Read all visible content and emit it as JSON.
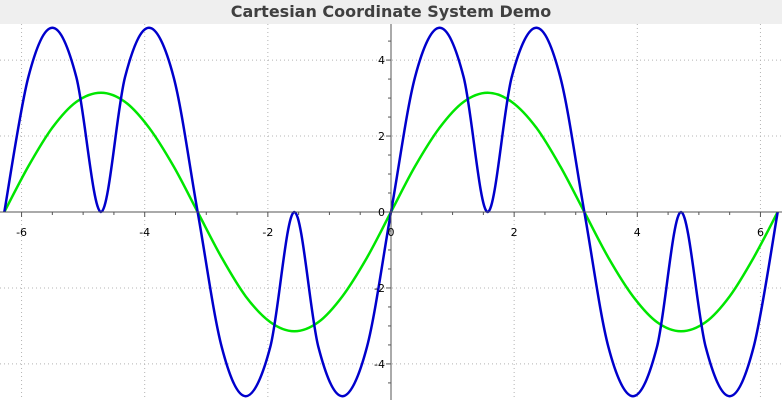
{
  "window": {
    "title": "Cartesian Coordinate System Demo"
  },
  "chart_data": {
    "type": "line",
    "title": "Cartesian Coordinate System Demo",
    "xlabel": "",
    "ylabel": "",
    "xlim": [
      -6.35,
      6.35
    ],
    "ylim": [
      -4.95,
      4.95
    ],
    "grid": true,
    "grid_style": "dotted",
    "axes_style": "cartesian axes crossing at origin",
    "x_ticks": [
      -6,
      -4,
      -2,
      0,
      2,
      4,
      6
    ],
    "y_ticks": [
      -4,
      -2,
      0,
      2,
      4
    ],
    "x": [
      -6.28,
      -5.89,
      -5.5,
      -5.11,
      -4.71,
      -4.32,
      -3.93,
      -3.53,
      -3.14,
      -2.75,
      -2.36,
      -1.96,
      -1.57,
      -1.18,
      -0.79,
      -0.39,
      0.0,
      0.39,
      0.79,
      1.18,
      1.57,
      1.96,
      2.36,
      2.75,
      3.14,
      3.53,
      3.93,
      4.32,
      4.71,
      5.11,
      5.5,
      5.89,
      6.28
    ],
    "series": [
      {
        "color": "#00e600",
        "values": [
          0.0,
          1.2,
          2.22,
          2.9,
          3.14,
          2.9,
          2.22,
          1.2,
          0.0,
          -1.2,
          -2.22,
          -2.9,
          -3.14,
          -2.9,
          -2.22,
          -1.2,
          0.0,
          1.2,
          2.22,
          2.9,
          3.14,
          2.9,
          2.22,
          1.2,
          0.0,
          -1.2,
          -2.22,
          -2.9,
          -3.14,
          -2.9,
          -2.22,
          -1.2,
          0.0
        ]
      },
      {
        "color": "#0000cc",
        "values": [
          0.0,
          3.55,
          4.85,
          3.55,
          0.0,
          3.55,
          4.85,
          3.55,
          0.0,
          -3.55,
          -4.85,
          -3.55,
          0.0,
          -3.55,
          -4.85,
          -3.55,
          0.0,
          3.55,
          4.85,
          3.55,
          0.0,
          3.55,
          4.85,
          3.55,
          0.0,
          -3.55,
          -4.85,
          -3.55,
          0.0,
          -3.55,
          -4.85,
          -3.55,
          0.0
        ]
      }
    ]
  }
}
